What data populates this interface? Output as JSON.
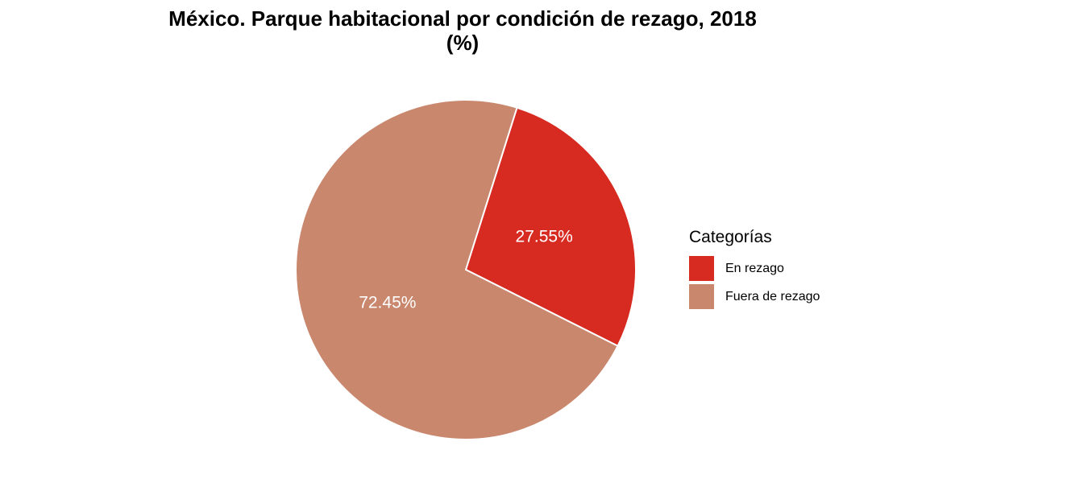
{
  "chart_data": {
    "type": "pie",
    "title_line1": "México. Parque habitacional por condición de rezago, 2018",
    "title_line2": "(%)",
    "legend_title": "Categorías",
    "legend_position": "right",
    "slices": [
      {
        "label": "En rezago",
        "value": 27.55,
        "display": "27.55%",
        "color": "#D72B21"
      },
      {
        "label": "Fuera de rezago",
        "value": 72.45,
        "display": "72.45%",
        "color": "#C9876E"
      }
    ]
  }
}
